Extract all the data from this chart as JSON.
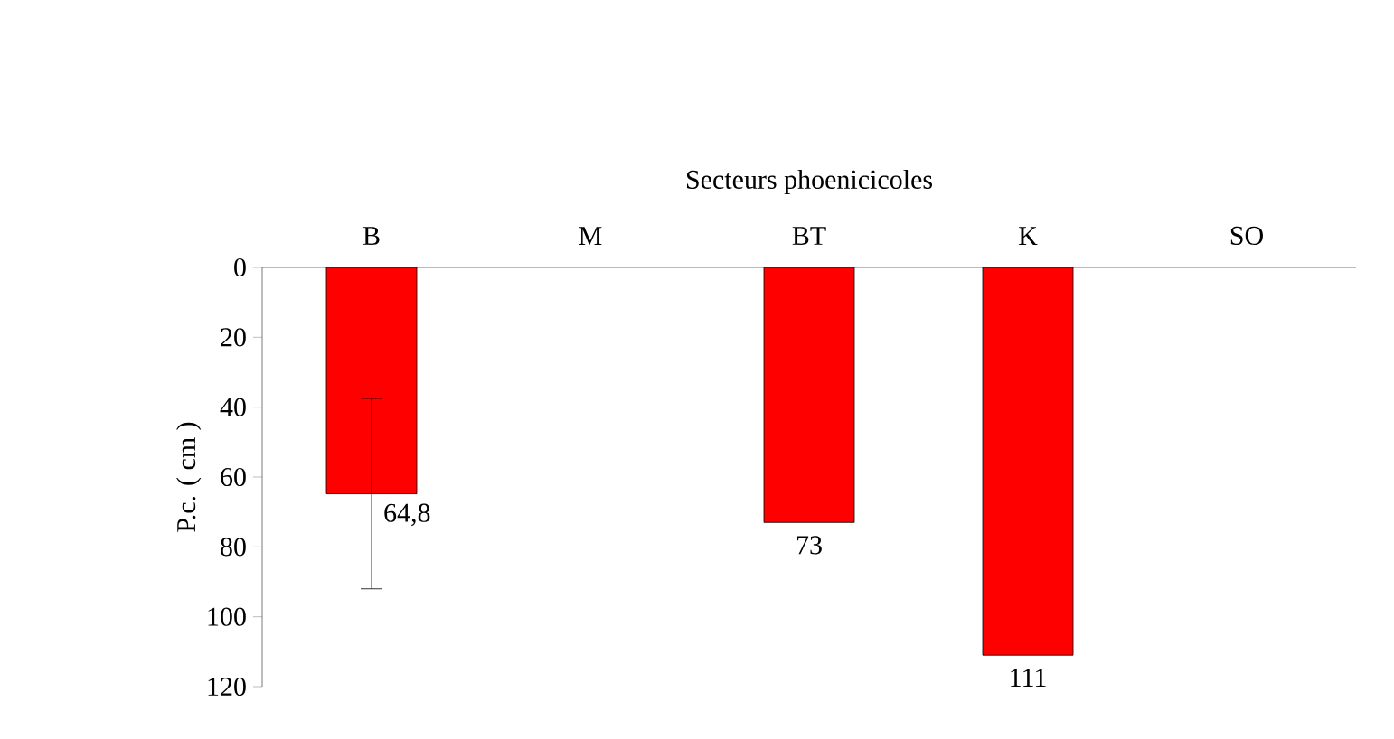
{
  "chart_data": {
    "type": "bar",
    "xlabel": "Secteurs phoenicicoles",
    "ylabel": "P.c. ( cm )",
    "categories": [
      "B",
      "M",
      "BT",
      "K",
      "SO"
    ],
    "values": [
      64.8,
      null,
      73,
      111,
      null
    ],
    "errors": [
      [
        37.5,
        92
      ],
      null,
      null,
      null,
      null
    ],
    "value_labels": [
      "64,8",
      null,
      "73",
      "111",
      null
    ],
    "color": "#ff0000",
    "ylim": [
      120,
      0
    ],
    "yticks": [
      0,
      20,
      40,
      60,
      80,
      100,
      120
    ],
    "grid": false
  }
}
